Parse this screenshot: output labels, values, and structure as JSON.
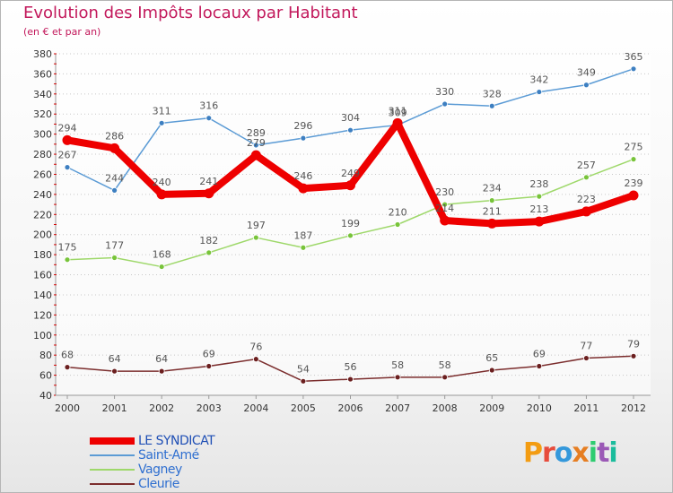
{
  "title": "Evolution des Impôts locaux par Habitant",
  "subtitle": "(en € et par an)",
  "logo": {
    "text": "Proxiti",
    "letters": [
      {
        "ch": "P",
        "color": "#f39c12"
      },
      {
        "ch": "r",
        "color": "#e74c3c"
      },
      {
        "ch": "o",
        "color": "#3498db"
      },
      {
        "ch": "x",
        "color": "#e67e22"
      },
      {
        "ch": "i",
        "color": "#2ecc71"
      },
      {
        "ch": "t",
        "color": "#9b59b6"
      },
      {
        "ch": "i",
        "color": "#1abc9c"
      }
    ]
  },
  "chart_data": {
    "type": "line",
    "title": "Evolution des Impôts locaux par Habitant",
    "subtitle": "(en € et par an)",
    "xlabel": "",
    "ylabel": "",
    "ylim": [
      40,
      380
    ],
    "yticks": [
      40,
      60,
      80,
      100,
      120,
      140,
      160,
      180,
      200,
      220,
      240,
      260,
      280,
      300,
      320,
      340,
      360,
      380
    ],
    "x": [
      "2000",
      "2001",
      "2002",
      "2003",
      "2004",
      "2005",
      "2006",
      "2007",
      "2008",
      "2009",
      "2010",
      "2011",
      "2012"
    ],
    "grid": "horizontal dotted",
    "legend_position": "bottom-left",
    "series": [
      {
        "name": "Saint-Amé",
        "color": "#5b9bd5",
        "marker": "#3d7fc1",
        "width": 1.5,
        "values": [
          267,
          244,
          311,
          316,
          289,
          296,
          304,
          309,
          330,
          328,
          342,
          349,
          365
        ]
      },
      {
        "name": "Vagney",
        "color": "#9ed86a",
        "marker": "#78c43a",
        "width": 1.5,
        "values": [
          175,
          177,
          168,
          182,
          197,
          187,
          199,
          210,
          230,
          234,
          238,
          257,
          275
        ]
      },
      {
        "name": "Cleurie",
        "color": "#7b2d2d",
        "marker": "#6b1f1f",
        "width": 1.5,
        "values": [
          68,
          64,
          64,
          69,
          76,
          54,
          56,
          58,
          58,
          65,
          69,
          77,
          79
        ]
      },
      {
        "name": "LE SYNDICAT",
        "color": "#ee0000",
        "marker": "#ee0000",
        "width": 8,
        "values": [
          294,
          286,
          240,
          241,
          279,
          246,
          249,
          311,
          214,
          211,
          213,
          223,
          239
        ]
      }
    ],
    "legend_order": [
      "LE SYNDICAT",
      "Saint-Amé",
      "Vagney",
      "Cleurie"
    ],
    "label_color": "#555555"
  }
}
